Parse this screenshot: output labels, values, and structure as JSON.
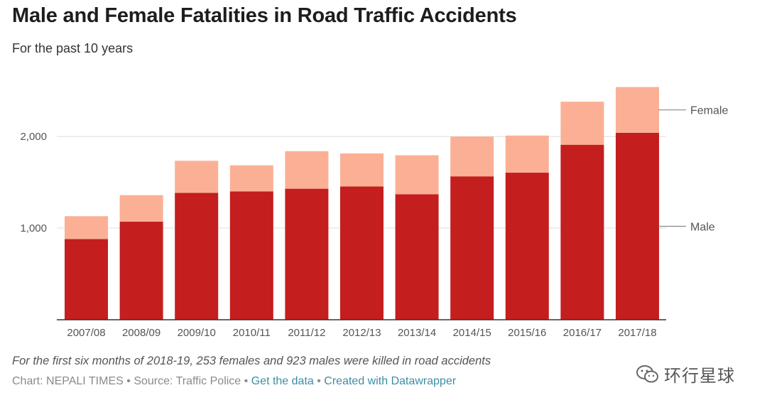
{
  "header": {
    "title": "Male and Female Fatalities in Road Traffic Accidents",
    "subtitle": "For the past 10 years"
  },
  "chart_data": {
    "type": "bar",
    "stacked": true,
    "categories": [
      "2007/08",
      "2008/09",
      "2009/10",
      "2010/11",
      "2011/12",
      "2012/13",
      "2013/14",
      "2014/15",
      "2015/16",
      "2016/17",
      "2017/18"
    ],
    "series": [
      {
        "name": "Male",
        "color": "#c41e1e",
        "values": [
          880,
          1070,
          1385,
          1400,
          1430,
          1455,
          1370,
          1565,
          1605,
          1910,
          2040
        ]
      },
      {
        "name": "Female",
        "color": "#fbb095",
        "values": [
          250,
          290,
          350,
          285,
          410,
          360,
          425,
          435,
          405,
          470,
          500
        ]
      }
    ],
    "yticks": [
      1000,
      2000
    ],
    "ytick_labels": [
      "1,000",
      "2,000"
    ],
    "ylim": [
      0,
      2700
    ],
    "grid": true,
    "legend": "right, inline labels"
  },
  "note": "For the first six months of 2018-19, 253 females and 923 males were killed in road accidents",
  "footer": {
    "credit": "Chart: NEPALI TIMES",
    "source": "Source: Traffic Police",
    "get_data": "Get the data",
    "created_with": "Created with Datawrapper",
    "separator": "•"
  },
  "watermark": {
    "text": "环行星球",
    "icon": "wechat-icon"
  }
}
